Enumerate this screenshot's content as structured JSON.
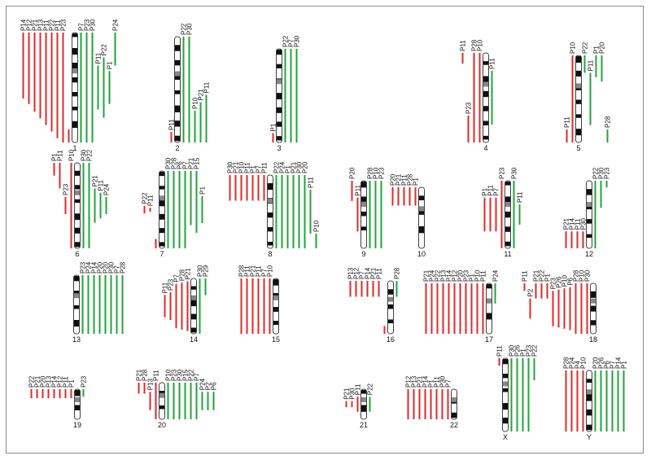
{
  "colors": {
    "loss": "#e02a2a",
    "gain": "#22a33a",
    "band_dark": "#111111",
    "centromere": "#888888"
  },
  "chromosomes": [
    {
      "name": "1",
      "left": [
        [
          "P14",
          "top",
          60
        ],
        [
          "P12",
          "top",
          65
        ],
        [
          "P21",
          "top",
          72
        ],
        [
          "P13",
          "top",
          78
        ],
        [
          "P11",
          "top",
          84
        ],
        [
          "P22",
          "top",
          90
        ],
        [
          "P11",
          "top",
          96
        ],
        [
          "P23",
          "top",
          100
        ],
        [
          "",
          "bottom",
          12
        ]
      ],
      "right": [
        [
          "P7",
          "top",
          100
        ],
        [
          "P23",
          "top",
          100
        ],
        [
          "P30",
          "top",
          100
        ],
        [
          "P11",
          "mid",
          40
        ],
        [
          "P22",
          "mid",
          55
        ],
        [
          "P1",
          "mid",
          30
        ],
        [
          "P24",
          "top",
          30
        ]
      ]
    },
    {
      "name": "2",
      "left": [
        [
          "P11",
          "bottom",
          10
        ]
      ],
      "right": [
        [
          "P22",
          "top",
          100
        ],
        [
          "P30",
          "top",
          100
        ],
        [
          "P10",
          "bottom",
          30
        ],
        [
          "P21",
          "bottom",
          38
        ],
        [
          "P11",
          "bottom",
          45
        ]
      ]
    },
    {
      "name": "3",
      "left": [
        [
          "P1",
          "bottom",
          10
        ]
      ],
      "right": [
        [
          "P22",
          "top",
          100
        ],
        [
          "P7",
          "top",
          100
        ],
        [
          "P30",
          "top",
          100
        ]
      ]
    },
    {
      "name": "4",
      "left": [
        [
          "P11",
          "top",
          12
        ],
        [
          "P23",
          "bottom",
          30
        ],
        [
          "P28",
          "top",
          100
        ],
        [
          "P10",
          "top",
          100
        ]
      ],
      "right": [
        [
          "P11",
          "mid",
          60
        ]
      ]
    },
    {
      "name": "5",
      "left": [
        [
          "P11",
          "bottom",
          15
        ],
        [
          "P10",
          "top",
          100
        ]
      ],
      "right": [
        [
          "P22",
          "top",
          20
        ],
        [
          "P11",
          "mid",
          60
        ],
        [
          "P1",
          "top",
          25
        ],
        [
          "P20",
          "top",
          30
        ],
        [
          "P28",
          "bottom",
          15
        ]
      ]
    },
    {
      "name": "6",
      "left": [
        [
          "P1",
          "top",
          15
        ],
        [
          "P11",
          "top",
          30
        ],
        [
          "P23",
          "mid",
          20
        ],
        [
          "P10",
          "top",
          100
        ]
      ],
      "right": [
        [
          "P30",
          "top",
          100
        ],
        [
          "P22",
          "top",
          100
        ],
        [
          "P21",
          "mid",
          40
        ],
        [
          "P11",
          "mid",
          30
        ],
        [
          "P24",
          "mid",
          20
        ]
      ]
    },
    {
      "name": "7",
      "left": [
        [
          "P22",
          "mid",
          10
        ],
        [
          "P11",
          "mid",
          5
        ],
        [
          "",
          "bottom",
          12
        ]
      ],
      "right": [
        [
          "P30",
          "top",
          100
        ],
        [
          "P28",
          "top",
          100
        ],
        [
          "P6",
          "top",
          100
        ],
        [
          "P7",
          "top",
          100
        ],
        [
          "P21",
          "top",
          70
        ],
        [
          "P15",
          "top",
          80
        ],
        [
          "P1",
          "mid",
          35
        ]
      ]
    },
    {
      "name": "8",
      "left": [
        [
          "P30",
          "top",
          35
        ],
        [
          "P21",
          "top",
          35
        ],
        [
          "P10",
          "top",
          35
        ],
        [
          "P11",
          "top",
          35
        ],
        [
          "P1",
          "top",
          35
        ],
        [
          "P7",
          "top",
          35
        ],
        [
          "P11",
          "top",
          35
        ]
      ],
      "right": [
        [
          "P22",
          "top",
          100
        ],
        [
          "P24",
          "mid",
          100
        ],
        [
          "P1",
          "mid",
          100
        ],
        [
          "P21",
          "mid",
          100
        ],
        [
          "P30",
          "mid",
          100
        ],
        [
          "P20",
          "mid",
          100
        ],
        [
          "P11",
          "mid",
          60
        ],
        [
          "P10",
          "bottom",
          20
        ]
      ]
    },
    {
      "name": "9",
      "left": [
        [
          "P20",
          "top",
          30
        ],
        [
          "P11",
          "mid",
          50
        ]
      ],
      "right": [
        [
          "P28",
          "top",
          100
        ],
        [
          "P10",
          "top",
          100
        ],
        [
          "P23",
          "top",
          100
        ]
      ]
    },
    {
      "name": "10",
      "left": [
        [
          "P20",
          "top",
          30
        ],
        [
          "P21",
          "top",
          30
        ],
        [
          "P11",
          "top",
          30
        ],
        [
          "P28",
          "top",
          30
        ],
        [
          "P1",
          "top",
          30
        ]
      ],
      "right": []
    },
    {
      "name": "11",
      "left": [
        [
          "P1",
          "mid",
          50
        ],
        [
          "P11",
          "mid",
          50
        ],
        [
          "P7",
          "mid",
          50
        ],
        [
          "P23",
          "top",
          100
        ]
      ],
      "right": [
        [
          "P30",
          "top",
          100
        ],
        [
          "P11",
          "mid",
          30
        ]
      ]
    },
    {
      "name": "12",
      "left": [
        [
          "P21",
          "bottom",
          25
        ],
        [
          "P14",
          "bottom",
          25
        ],
        [
          "P11",
          "bottom",
          25
        ],
        [
          "P30",
          "bottom",
          25
        ]
      ],
      "right": [
        [
          "P22",
          "top",
          100
        ],
        [
          "P30",
          "top",
          40
        ],
        [
          "P23",
          "top",
          10
        ]
      ]
    },
    {
      "name": "13",
      "left": [],
      "right": [
        [
          "P23",
          "top",
          100
        ],
        [
          "P24",
          "top",
          100
        ],
        [
          "P14",
          "top",
          100
        ],
        [
          "P20",
          "top",
          100
        ],
        [
          "P20",
          "top",
          100
        ],
        [
          "P30",
          "top",
          100
        ],
        [
          "P7",
          "top",
          100
        ],
        [
          "P28",
          "top",
          100
        ]
      ]
    },
    {
      "name": "14",
      "left": [
        [
          "P11",
          "mid",
          40
        ],
        [
          "P23",
          "mid",
          50
        ],
        [
          "P7",
          "mid",
          80
        ],
        [
          "P28",
          "mid",
          85
        ],
        [
          "P21",
          "mid",
          90
        ]
      ],
      "right": [
        [
          "P30",
          "top",
          100
        ],
        [
          "P29",
          "top",
          30
        ]
      ]
    },
    {
      "name": "15",
      "left": [
        [
          "P28",
          "top",
          100
        ],
        [
          "P11",
          "top",
          100
        ],
        [
          "P21",
          "top",
          100
        ],
        [
          "P11",
          "top",
          100
        ],
        [
          "P7",
          "top",
          100
        ],
        [
          "P10",
          "top",
          100
        ]
      ],
      "right": []
    },
    {
      "name": "16",
      "left": [
        [
          "P13",
          "top",
          30
        ],
        [
          "P12",
          "top",
          30
        ],
        [
          "P7",
          "top",
          30
        ],
        [
          "P14",
          "top",
          30
        ],
        [
          "P21",
          "top",
          30
        ],
        [
          "P11",
          "top",
          30
        ],
        [
          "",
          "bottom",
          15
        ]
      ],
      "right": [
        [
          "P28",
          "top",
          30
        ]
      ]
    },
    {
      "name": "17",
      "left": [
        [
          "P21",
          "top",
          100
        ],
        [
          "P24",
          "top",
          100
        ],
        [
          "P22",
          "top",
          100
        ],
        [
          "P13",
          "top",
          100
        ],
        [
          "P14",
          "top",
          100
        ],
        [
          "P12",
          "top",
          100
        ],
        [
          "P20",
          "top",
          100
        ],
        [
          "P23",
          "top",
          100
        ],
        [
          "P1",
          "top",
          100
        ],
        [
          "P10",
          "top",
          100
        ],
        [
          "P11",
          "top",
          100
        ]
      ],
      "right": [
        [
          "P24",
          "top",
          40
        ]
      ]
    },
    {
      "name": "18",
      "left": [
        [
          "P11",
          "top",
          15
        ],
        [
          "P2",
          "mid",
          40
        ],
        [
          "P21",
          "top",
          30
        ],
        [
          "P22",
          "top",
          30
        ],
        [
          "P1",
          "top",
          30
        ],
        [
          "P23",
          "mid",
          70
        ],
        [
          "P26",
          "mid",
          75
        ],
        [
          "P10",
          "mid",
          80
        ],
        [
          "P6",
          "mid",
          85
        ],
        [
          "P28",
          "top",
          100
        ],
        [
          "P10",
          "top",
          100
        ],
        [
          "P30",
          "top",
          100
        ]
      ],
      "right": []
    },
    {
      "name": "19",
      "left": [
        [
          "P22",
          "top",
          30
        ],
        [
          "P21",
          "top",
          30
        ],
        [
          "P20",
          "top",
          30
        ],
        [
          "P13",
          "top",
          30
        ],
        [
          "P14",
          "top",
          30
        ],
        [
          "P12",
          "top",
          30
        ],
        [
          "P11",
          "top",
          30
        ],
        [
          "P1",
          "top",
          30
        ]
      ],
      "right": [
        [
          "P23",
          "top",
          25
        ]
      ]
    },
    {
      "name": "20",
      "left": [
        [
          "P21",
          "top",
          30
        ],
        [
          "P28",
          "top",
          30
        ],
        [
          "P13",
          "mid",
          50
        ],
        [
          "P11",
          "top",
          100
        ]
      ],
      "right": [
        [
          "P10",
          "top",
          100
        ],
        [
          "P23",
          "top",
          100
        ],
        [
          "P30",
          "top",
          100
        ],
        [
          "P15",
          "top",
          100
        ],
        [
          "P22",
          "top",
          100
        ],
        [
          "P7",
          "top",
          100
        ],
        [
          "P24",
          "mid",
          50
        ],
        [
          "P2",
          "mid",
          50
        ],
        [
          "P6",
          "mid",
          50
        ]
      ]
    },
    {
      "name": "21",
      "left": [
        [
          "P21",
          "mid",
          20
        ],
        [
          "P30",
          "mid",
          20
        ],
        [
          "P11",
          "mid",
          50
        ]
      ],
      "right": [
        [
          "P22",
          "mid",
          50
        ]
      ]
    },
    {
      "name": "22",
      "left": [
        [
          "P12",
          "top",
          100
        ],
        [
          "P13",
          "top",
          100
        ],
        [
          "P21",
          "top",
          100
        ],
        [
          "P14",
          "top",
          100
        ],
        [
          "P1",
          "top",
          100
        ],
        [
          "P11",
          "top",
          100
        ],
        [
          "P30",
          "top",
          100
        ],
        [
          "P7",
          "top",
          100
        ]
      ],
      "right": []
    },
    {
      "name": "X",
      "left": [
        [
          "P11",
          "top",
          10
        ]
      ],
      "right": [
        [
          "P30",
          "top",
          100
        ],
        [
          "P26",
          "top",
          100
        ],
        [
          "P1",
          "top",
          100
        ],
        [
          "P23",
          "top",
          100
        ],
        [
          "P22",
          "top",
          30
        ]
      ]
    },
    {
      "name": "Y",
      "left": [
        [
          "P28",
          "top",
          100
        ],
        [
          "P24",
          "top",
          100
        ],
        [
          "P4",
          "top",
          100
        ],
        [
          "P10",
          "top",
          100
        ]
      ],
      "right": [
        [
          "P20",
          "top",
          100
        ],
        [
          "P26",
          "top",
          100
        ],
        [
          "P6",
          "top",
          100
        ],
        [
          "P7",
          "top",
          100
        ],
        [
          "P14",
          "top",
          100
        ],
        [
          "P1",
          "top",
          100
        ]
      ]
    }
  ]
}
